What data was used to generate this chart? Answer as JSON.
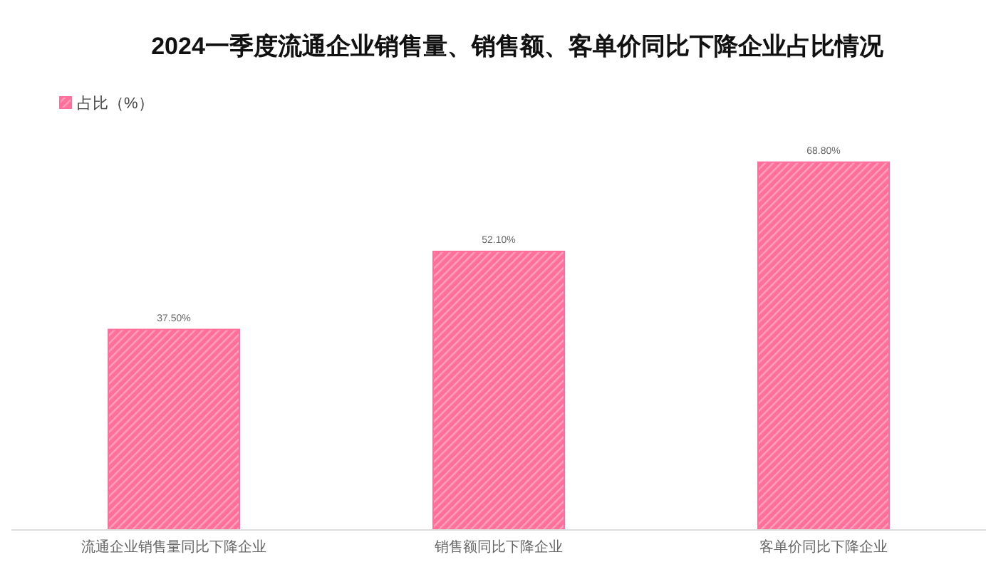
{
  "chart_data": {
    "type": "bar",
    "title": "2024一季度流通企业销售量、销售额、客单价同比下降企业占比情况",
    "categories": [
      "流通企业销售量同比下降企业",
      "销售额同比下降企业",
      "客单价同比下降企业"
    ],
    "series": [
      {
        "name": "占比（%）",
        "color": "#ff6f9c",
        "values": [
          37.5,
          52.1,
          68.8
        ],
        "value_labels": [
          "37.50%",
          "52.10%",
          "68.80%"
        ]
      }
    ],
    "legend": "top left"
  }
}
